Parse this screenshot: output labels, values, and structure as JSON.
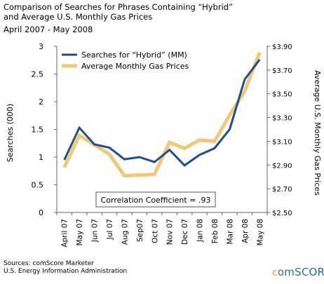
{
  "chart_data": {
    "type": "line",
    "title": "Comparison of Searches for Phrases Containing “Hybrid”\nand Average U.S. Monthly Gas Prices",
    "subtitle": "April 2007 - May 2008",
    "categories": [
      "April 07",
      "May 07",
      "Jun 07",
      "Jul 07",
      "Aug 07",
      "Sep07",
      "Oct 07",
      "Nov 07",
      "Dec 07",
      "Jan 08",
      "Feb 08",
      "Mar 08",
      "Apr 08",
      "May 08"
    ],
    "ylabel": "Searches (000)",
    "y2label": "Average U.S. Monthly Gas Prices",
    "ylim": [
      0,
      3
    ],
    "yticks": [
      "0",
      "0.5",
      "1",
      "1.5",
      "2",
      "2.5",
      "3"
    ],
    "y2lim": [
      2.5,
      3.9
    ],
    "y2ticks": [
      "$2.50",
      "$2.70",
      "$2.90",
      "$3.10",
      "$3.30",
      "$3.50",
      "$3.70",
      "$3.90"
    ],
    "series": [
      {
        "name": "Searches for “Hybrid” (MM)",
        "axis": "left",
        "color": "#1f4e8c",
        "values": [
          0.95,
          1.53,
          1.23,
          1.17,
          0.96,
          1.0,
          0.91,
          1.13,
          0.85,
          1.04,
          1.16,
          1.5,
          2.4,
          2.76
        ]
      },
      {
        "name": "Average Monthly Gas Prices",
        "axis": "right",
        "color": "#f1c779",
        "values": [
          2.88,
          3.15,
          3.07,
          2.99,
          2.81,
          2.815,
          2.82,
          3.09,
          3.04,
          3.11,
          3.1,
          3.32,
          3.52,
          3.85
        ]
      }
    ],
    "annotation": "Correlation Coefficient = .93",
    "legend_position": "top-left",
    "grid": false
  },
  "sources": [
    "Sources: comScore Marketer",
    "U.S. Energy Information Administration"
  ],
  "logo": {
    "first": "c",
    "rest": "omSCORE"
  }
}
